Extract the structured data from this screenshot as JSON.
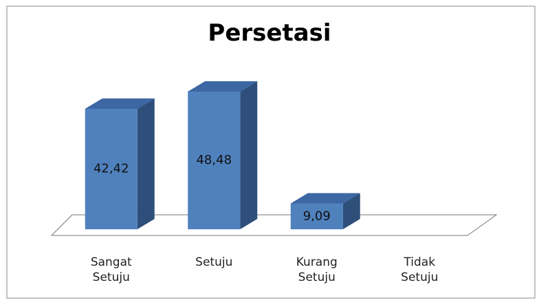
{
  "chart_data": {
    "type": "bar3d",
    "title": "Persetasi",
    "categories": [
      "Sangat Setuju",
      "Setuju",
      "Kurang Setuju",
      "Tidak Setuju"
    ],
    "values": [
      42.42,
      48.48,
      9.09,
      0
    ],
    "value_labels": [
      "42,42",
      "48,48",
      "9,09",
      null
    ],
    "color": "#4f81bd"
  }
}
